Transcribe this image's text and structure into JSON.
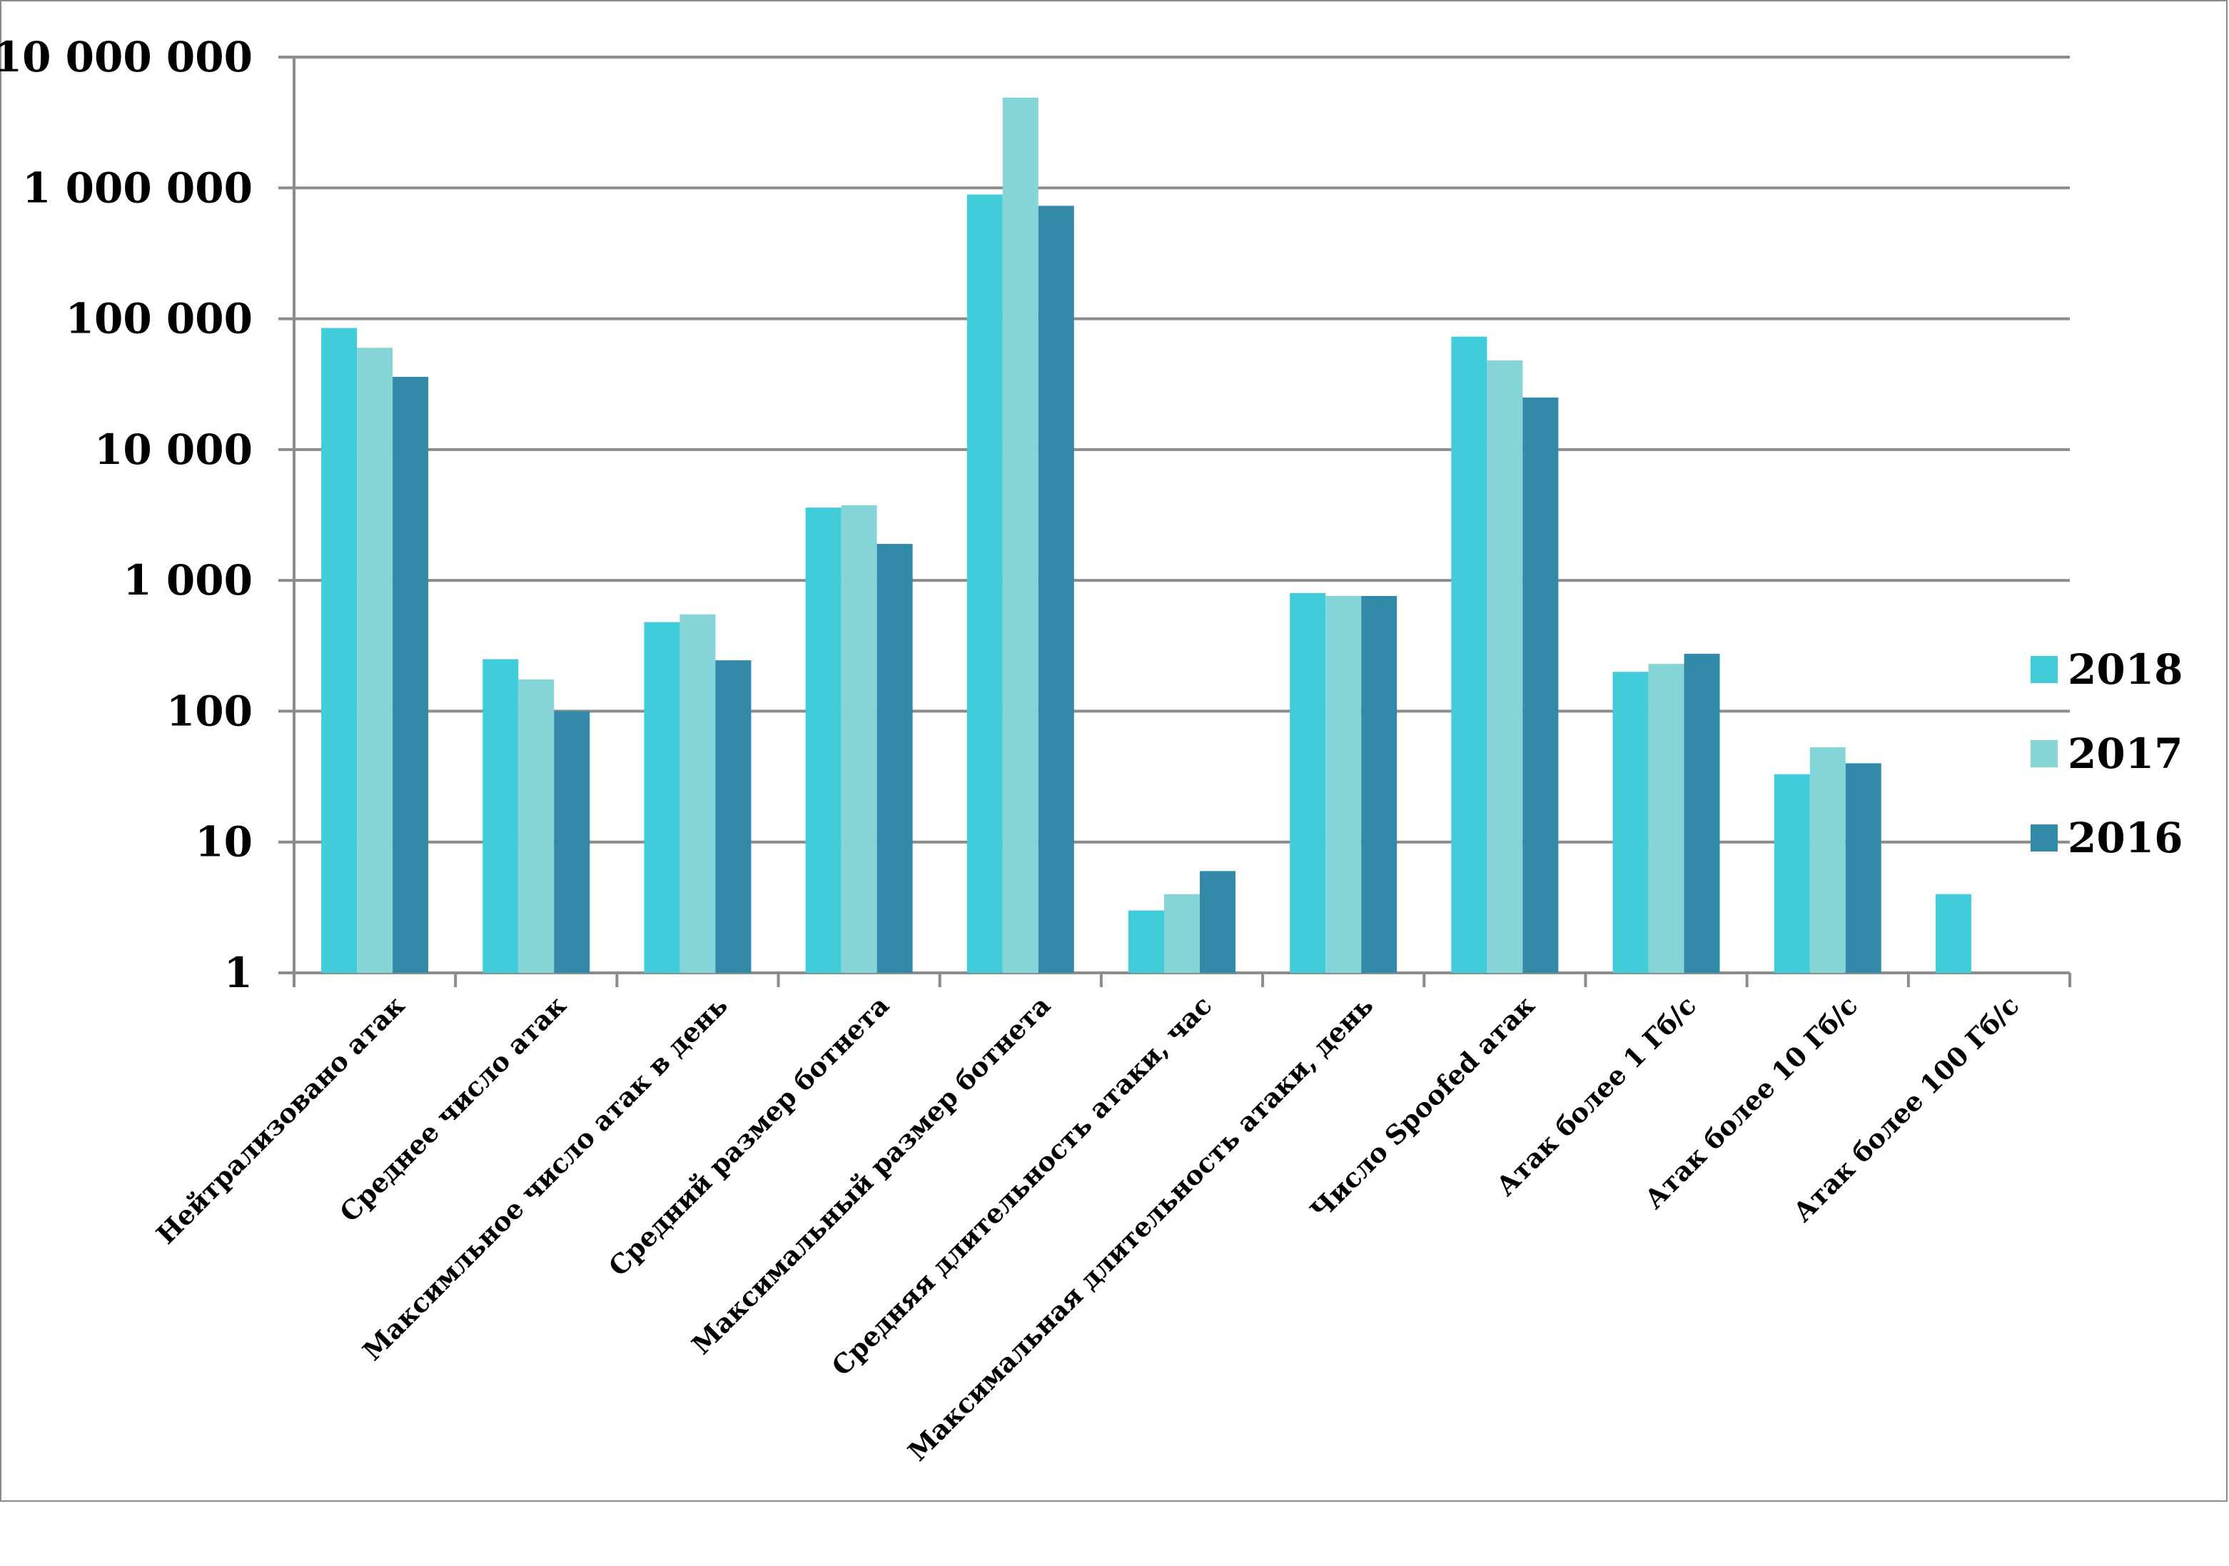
{
  "chart_data": {
    "type": "bar",
    "title": "",
    "xlabel": "",
    "ylabel": "",
    "yscale": "log",
    "ylim": [
      1,
      10000000
    ],
    "grid": true,
    "legend_position": "right",
    "yticks": [
      1,
      10,
      100,
      1000,
      10000,
      100000,
      1000000,
      10000000
    ],
    "ytick_labels": [
      "1",
      "10",
      "100",
      "1 000",
      "10 000",
      "100 000",
      "1 000 000",
      "10 000 000"
    ],
    "categories": [
      "Нейтрализовано атак",
      "Среднее число атак",
      "Максимльное число атак в день",
      "Средний размер ботнета",
      "Максимальный размер ботнета",
      "Средняя длительность атаки, час",
      "Максимальная длительность атаки, день",
      "Число Spoofed атак",
      "Атак более 1 Гб/с",
      "Атак более 10 Гб/с",
      "Атак более 100 Гб/с"
    ],
    "series": [
      {
        "name": "2018",
        "color": "#40ccd9",
        "values": [
          85000,
          250,
          480,
          3600,
          890000,
          3,
          800,
          73000,
          200,
          33,
          4
        ]
      },
      {
        "name": "2017",
        "color": "#84d4d8",
        "values": [
          60000,
          175,
          550,
          3750,
          4900000,
          4,
          760,
          48000,
          230,
          53,
          null
        ]
      },
      {
        "name": "2016",
        "color": "#338aa8",
        "values": [
          36000,
          100,
          245,
          1900,
          730000,
          6,
          760,
          25000,
          275,
          40,
          null
        ]
      }
    ]
  }
}
